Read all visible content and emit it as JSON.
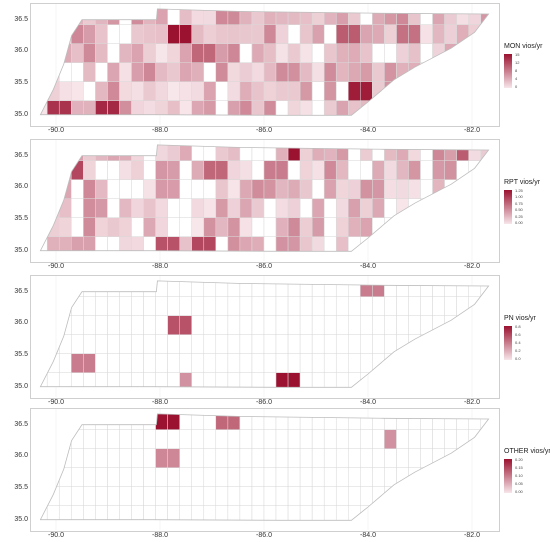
{
  "colors": {
    "low": "#f7e6ea",
    "high": "#9b1230",
    "border": "#d9d9d9",
    "frame": "#cfcfcf"
  },
  "axes": {
    "y_ticks": [
      "36.5",
      "36.0",
      "35.5",
      "35.0"
    ],
    "x_ticks": [
      "-90.0",
      "-88.0",
      "-86.0",
      "-84.0",
      "-82.0"
    ]
  },
  "panels": [
    {
      "legend_title": "MON vios/yr",
      "legend_labels": [
        "15",
        "12",
        "8",
        "4",
        "0"
      ]
    },
    {
      "legend_title": "RPT vios/yr",
      "legend_labels": [
        "1.25",
        "1.00",
        "0.75",
        "0.50",
        "0.25",
        "0.00"
      ]
    },
    {
      "legend_title": "PN vios/yr",
      "legend_labels": [
        "0.8",
        "0.6",
        "0.4",
        "0.2",
        "0.0"
      ]
    },
    {
      "legend_title": "OTHER vios/yr",
      "legend_labels": [
        "0.20",
        "0.15",
        "0.10",
        "0.05",
        "0.00"
      ]
    }
  ],
  "chart_data": [
    {
      "type": "heatmap",
      "title": "MON vios/yr",
      "xlim": [
        -90.5,
        -81.5
      ],
      "ylim": [
        34.9,
        36.7
      ],
      "value_range": [
        0,
        15
      ]
    },
    {
      "type": "heatmap",
      "title": "RPT vios/yr",
      "xlim": [
        -90.5,
        -81.5
      ],
      "ylim": [
        34.9,
        36.7
      ],
      "value_range": [
        0,
        1.25
      ]
    },
    {
      "type": "heatmap",
      "title": "PN vios/yr",
      "xlim": [
        -90.5,
        -81.5
      ],
      "ylim": [
        34.9,
        36.7
      ],
      "value_range": [
        0,
        0.8
      ]
    },
    {
      "type": "heatmap",
      "title": "OTHER vios/yr",
      "xlim": [
        -90.5,
        -81.5
      ],
      "ylim": [
        34.9,
        36.7
      ],
      "value_range": [
        0,
        0.2
      ]
    }
  ]
}
